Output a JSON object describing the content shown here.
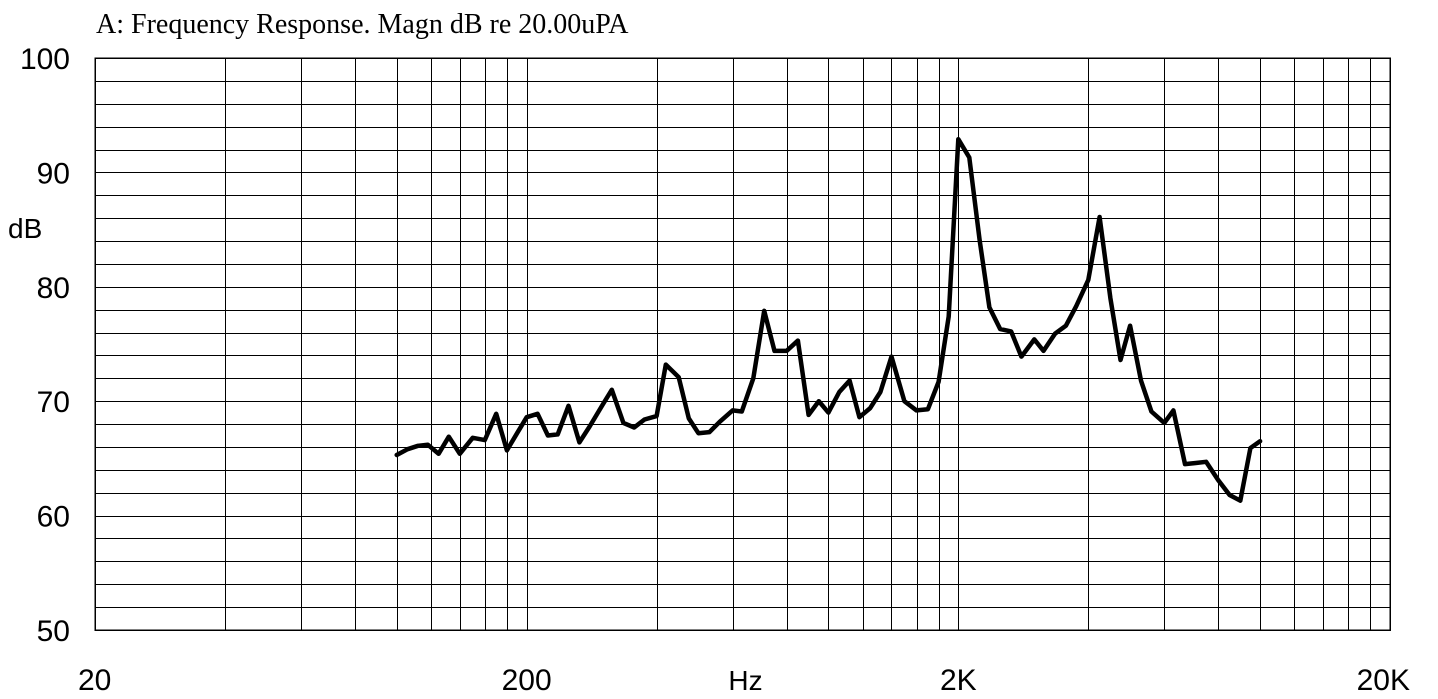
{
  "chart_data": {
    "type": "line",
    "title": "A: Frequency Response. Magn dB re 20.00uPA",
    "xlabel": "Hz",
    "ylabel": "dB",
    "xscale": "log",
    "xlim": [
      20,
      20000
    ],
    "ylim": [
      50,
      100
    ],
    "grid": true,
    "x_tick_labels": [
      {
        "value": 20,
        "label": "20"
      },
      {
        "value": 200,
        "label": "200"
      },
      {
        "value": 2000,
        "label": "2K"
      },
      {
        "value": 20000,
        "label": "20K"
      }
    ],
    "y_tick_labels": [
      {
        "value": 100,
        "label": "100"
      },
      {
        "value": 90,
        "label": "90"
      },
      {
        "value": 80,
        "label": "80"
      },
      {
        "value": 70,
        "label": "70"
      },
      {
        "value": 60,
        "label": "60"
      },
      {
        "value": 50,
        "label": "50"
      }
    ],
    "series": [
      {
        "x": [
          100,
          106,
          112,
          118,
          125,
          132,
          140,
          150,
          160,
          170,
          180,
          190,
          200,
          212,
          224,
          236,
          250,
          265,
          280,
          300,
          315,
          335,
          355,
          375,
          400,
          420,
          450,
          475,
          500,
          530,
          560,
          600,
          630,
          670,
          710,
          750,
          800,
          850,
          900,
          950,
          1000,
          1060,
          1120,
          1180,
          1250,
          1320,
          1400,
          1500,
          1600,
          1700,
          1800,
          1900,
          2000,
          2120,
          2240,
          2360,
          2500,
          2650,
          2800,
          3000,
          3150,
          3350,
          3550,
          3750,
          4000,
          4250,
          4500,
          4750,
          5000,
          5300,
          5600,
          6000,
          6300,
          6700,
          7100,
          7500,
          8000,
          8500,
          9000,
          9500,
          10000
        ],
        "y": [
          65.3,
          65.8,
          66.1,
          66.2,
          65.4,
          66.9,
          65.4,
          66.8,
          66.6,
          68.9,
          65.7,
          67.2,
          68.6,
          68.9,
          67.0,
          67.1,
          69.6,
          66.4,
          67.8,
          69.7,
          71.0,
          68.1,
          67.7,
          68.4,
          68.7,
          73.2,
          72.1,
          68.5,
          67.2,
          67.3,
          68.2,
          69.2,
          69.1,
          72.0,
          77.9,
          74.4,
          74.4,
          75.3,
          68.8,
          70.0,
          69.0,
          70.8,
          71.8,
          68.6,
          69.4,
          70.8,
          73.9,
          70.0,
          69.2,
          69.3,
          71.7,
          77.4,
          92.9,
          91.3,
          84.1,
          78.2,
          76.3,
          76.1,
          73.9,
          75.4,
          74.4,
          75.9,
          76.6,
          78.3,
          80.6,
          86.1,
          79.0,
          73.6,
          76.6,
          71.8,
          69.1,
          68.1,
          69.2,
          64.5,
          64.6,
          64.7,
          63.1,
          61.8,
          61.3,
          65.9,
          66.5
        ]
      }
    ]
  }
}
